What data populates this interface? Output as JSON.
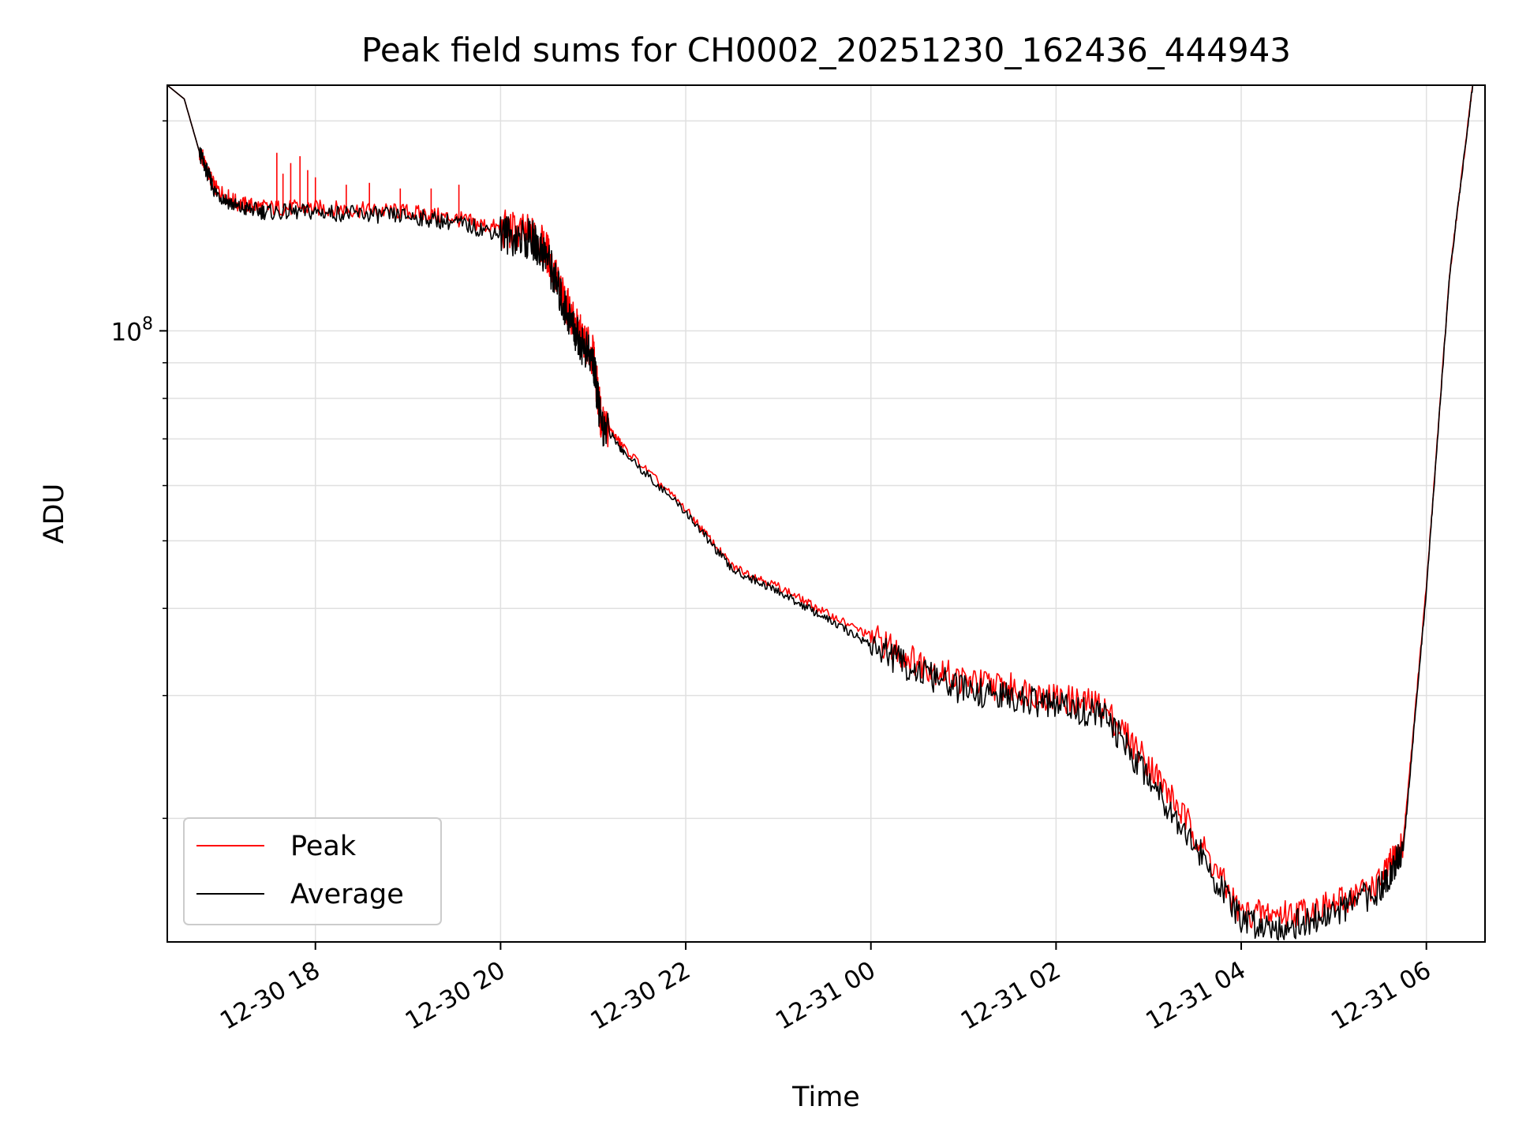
{
  "chart_data": {
    "type": "line",
    "title": "Peak field sums for CH0002_20251230_162436_444943",
    "xlabel": "Time",
    "ylabel": "ADU",
    "yscale": "log",
    "ylim": [
      13300000,
      225000000
    ],
    "xlim": [
      "2025-12-30 16:24",
      "2025-12-31 06:38"
    ],
    "x_ticks": [
      "12-30 18",
      "12-30 20",
      "12-30 22",
      "12-31 00",
      "12-31 02",
      "12-31 04",
      "12-31 06"
    ],
    "y_ticks": [
      {
        "label": "10",
        "exponent": "8",
        "value": 100000000
      }
    ],
    "grid": true,
    "legend": "lower-left",
    "series": [
      {
        "name": "Peak",
        "color": "#ff0000",
        "points": [
          [
            "2025-12-30 16:24",
            225000000
          ],
          [
            "2025-12-30 16:35",
            215000000
          ],
          [
            "2025-12-30 16:45",
            180000000
          ],
          [
            "2025-12-30 16:55",
            160000000
          ],
          [
            "2025-12-30 17:10",
            152000000
          ],
          [
            "2025-12-30 17:30",
            150000000
          ],
          [
            "2025-12-30 18:00",
            150000000
          ],
          [
            "2025-12-30 18:30",
            149000000
          ],
          [
            "2025-12-30 19:00",
            148000000
          ],
          [
            "2025-12-30 19:30",
            145000000
          ],
          [
            "2025-12-30 20:00",
            140000000
          ],
          [
            "2025-12-30 20:20",
            137000000
          ],
          [
            "2025-12-30 20:30",
            130000000
          ],
          [
            "2025-12-30 20:40",
            112000000
          ],
          [
            "2025-12-30 20:50",
            100000000
          ],
          [
            "2025-12-30 21:00",
            92000000
          ],
          [
            "2025-12-30 21:05",
            75000000
          ],
          [
            "2025-12-30 21:20",
            68000000
          ],
          [
            "2025-12-30 22:00",
            55500000
          ],
          [
            "2025-12-30 22:30",
            46000000
          ],
          [
            "2025-12-30 23:00",
            43000000
          ],
          [
            "2025-12-30 23:30",
            39500000
          ],
          [
            "2025-12-31 00:00",
            36500000
          ],
          [
            "2025-12-31 00:30",
            33500000
          ],
          [
            "2025-12-31 01:00",
            31500000
          ],
          [
            "2025-12-31 01:30",
            30800000
          ],
          [
            "2025-12-31 02:00",
            29800000
          ],
          [
            "2025-12-31 02:30",
            29000000
          ],
          [
            "2025-12-31 03:00",
            24000000
          ],
          [
            "2025-12-31 03:30",
            19000000
          ],
          [
            "2025-12-31 04:00",
            14600000
          ],
          [
            "2025-12-31 04:30",
            14600000
          ],
          [
            "2025-12-31 05:00",
            15000000
          ],
          [
            "2025-12-31 05:30",
            16200000
          ],
          [
            "2025-12-31 05:45",
            18500000
          ],
          [
            "2025-12-31 06:00",
            43000000
          ],
          [
            "2025-12-31 06:15",
            120000000
          ],
          [
            "2025-12-31 06:30",
            225000000
          ]
        ],
        "spikes": [
          [
            "2025-12-30 16:47",
            182000000
          ],
          [
            "2025-12-30 17:35",
            180000000
          ],
          [
            "2025-12-30 17:39",
            168000000
          ],
          [
            "2025-12-30 17:44",
            174000000
          ],
          [
            "2025-12-30 17:50",
            178000000
          ],
          [
            "2025-12-30 17:55",
            170000000
          ],
          [
            "2025-12-30 18:00",
            166000000
          ],
          [
            "2025-12-30 18:20",
            162000000
          ],
          [
            "2025-12-30 18:35",
            163000000
          ],
          [
            "2025-12-30 18:55",
            160000000
          ],
          [
            "2025-12-30 19:15",
            160000000
          ],
          [
            "2025-12-30 19:33",
            162000000
          ]
        ]
      },
      {
        "name": "Average",
        "color": "#000000",
        "points": [
          [
            "2025-12-30 16:24",
            225000000
          ],
          [
            "2025-12-30 16:35",
            215000000
          ],
          [
            "2025-12-30 16:45",
            180000000
          ],
          [
            "2025-12-30 16:55",
            158000000
          ],
          [
            "2025-12-30 17:10",
            150000000
          ],
          [
            "2025-12-30 17:30",
            148000000
          ],
          [
            "2025-12-30 18:00",
            148000000
          ],
          [
            "2025-12-30 18:30",
            147000000
          ],
          [
            "2025-12-30 19:00",
            146000000
          ],
          [
            "2025-12-30 19:30",
            143000000
          ],
          [
            "2025-12-30 20:00",
            138000000
          ],
          [
            "2025-12-30 20:20",
            135000000
          ],
          [
            "2025-12-30 20:30",
            128000000
          ],
          [
            "2025-12-30 20:40",
            110000000
          ],
          [
            "2025-12-30 20:50",
            98000000
          ],
          [
            "2025-12-30 21:00",
            90000000
          ],
          [
            "2025-12-30 21:05",
            74000000
          ],
          [
            "2025-12-30 21:20",
            67000000
          ],
          [
            "2025-12-30 22:00",
            55000000
          ],
          [
            "2025-12-30 22:30",
            45500000
          ],
          [
            "2025-12-30 23:00",
            42300000
          ],
          [
            "2025-12-30 23:30",
            38800000
          ],
          [
            "2025-12-31 00:00",
            35500000
          ],
          [
            "2025-12-31 00:30",
            32500000
          ],
          [
            "2025-12-31 01:00",
            30500000
          ],
          [
            "2025-12-31 01:30",
            29800000
          ],
          [
            "2025-12-31 02:00",
            29000000
          ],
          [
            "2025-12-31 02:30",
            28200000
          ],
          [
            "2025-12-31 03:00",
            23000000
          ],
          [
            "2025-12-31 03:30",
            18300000
          ],
          [
            "2025-12-31 04:00",
            14200000
          ],
          [
            "2025-12-31 04:30",
            14000000
          ],
          [
            "2025-12-31 05:00",
            14600000
          ],
          [
            "2025-12-31 05:30",
            15800000
          ],
          [
            "2025-12-31 05:45",
            18000000
          ],
          [
            "2025-12-31 06:00",
            42500000
          ],
          [
            "2025-12-31 06:15",
            120000000
          ],
          [
            "2025-12-31 06:30",
            225000000
          ]
        ]
      }
    ]
  }
}
